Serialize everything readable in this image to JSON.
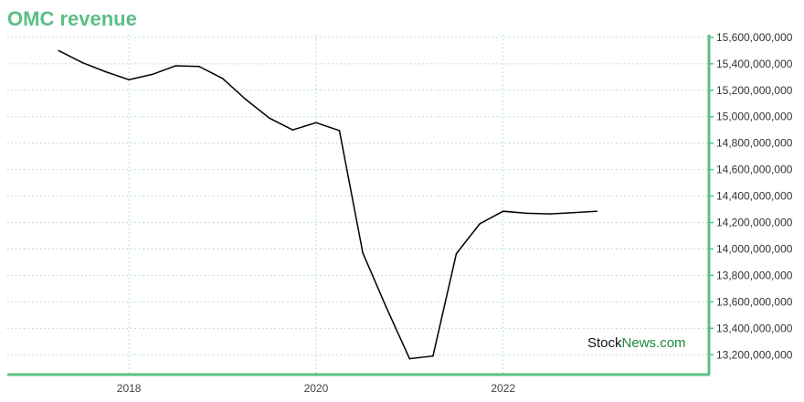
{
  "title": "OMC revenue",
  "watermark": {
    "part1": "Stock",
    "part2": "News",
    "part3": ".com"
  },
  "colors": {
    "accent": "#5bbf84",
    "line": "#000000",
    "grid": "#a8d8c8",
    "watermark_dark": "#111111",
    "watermark_green": "#1a8a3a"
  },
  "chart_data": {
    "type": "line",
    "title": "OMC revenue",
    "xlabel": "",
    "ylabel": "",
    "x_ticks": [
      2018,
      2020,
      2022
    ],
    "y_ticks": [
      13200000000,
      13400000000,
      13600000000,
      13800000000,
      14000000000,
      14200000000,
      14400000000,
      14600000000,
      14800000000,
      15000000000,
      15200000000,
      15400000000,
      15600000000
    ],
    "y_tick_labels": [
      "13,200,000,000",
      "13,400,000,000",
      "13,600,000,000",
      "13,800,000,000",
      "14,000,000,000",
      "14,200,000,000",
      "14,400,000,000",
      "14,600,000,000",
      "14,800,000,000",
      "15,000,000,000",
      "15,200,000,000",
      "15,400,000,000",
      "15,600,000,000"
    ],
    "xlim": [
      2016.7,
      2024.2
    ],
    "ylim": [
      13050000000,
      15620000000
    ],
    "y_axis_side": "right",
    "grid": true,
    "series": [
      {
        "x": [
          2017.25,
          2017.5,
          2017.75,
          2018.0,
          2018.25,
          2018.5,
          2018.75,
          2019.0,
          2019.25,
          2019.5,
          2019.75,
          2020.0,
          2020.25,
          2020.5,
          2020.75,
          2021.0,
          2021.25,
          2021.5,
          2021.75,
          2022.0,
          2022.25,
          2022.5,
          2022.75,
          2023.0
        ],
        "values": [
          15500000000,
          15410000000,
          15340000000,
          15280000000,
          15320000000,
          15385000000,
          15380000000,
          15290000000,
          15130000000,
          14990000000,
          14900000000,
          14955000000,
          14895000000,
          13970000000,
          13560000000,
          13170000000,
          13190000000,
          13965000000,
          14190000000,
          14285000000,
          14270000000,
          14265000000,
          14275000000,
          14285000000
        ]
      }
    ]
  }
}
